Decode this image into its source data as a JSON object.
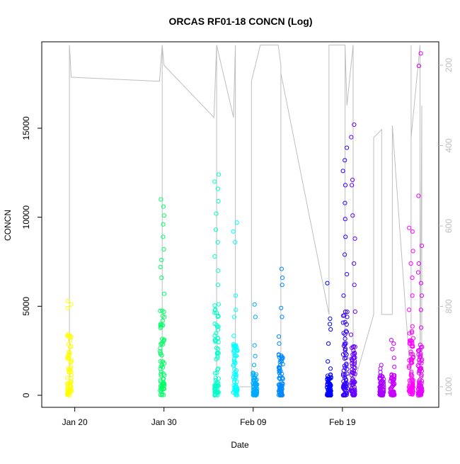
{
  "chart_data": {
    "type": "scatter",
    "title": "ORCAS RF01-18 CONCN (Log)",
    "xlabel": "Date",
    "ylabel": "CONCN",
    "x_ticks": [
      "Jan 20",
      "Jan 30",
      "Feb 09",
      "Feb 19"
    ],
    "y_ticks": [
      0,
      5000,
      10000,
      15000
    ],
    "y2_ticks": [
      200,
      400,
      600,
      800,
      1000
    ],
    "ylim": [
      0,
      19500
    ],
    "y2lim": [
      1000,
      150
    ],
    "grid": false,
    "colors": {
      "axis": "#000000",
      "secondary_axis": "#bebebe",
      "pressure_line": "#bebebe"
    },
    "flights": [
      {
        "day": 1.4,
        "color": "#ffff00",
        "max": 5400,
        "dense_max": 3800,
        "outliers": [
          4900,
          5100,
          5300
        ]
      },
      {
        "day": 11.8,
        "color": "#00ff66",
        "max": 11000,
        "dense_max": 4800,
        "outliers": [
          5700,
          6600,
          7200,
          7600,
          8200,
          8900,
          9600,
          10100,
          10600,
          11000
        ]
      },
      {
        "day": 17.9,
        "color": "#00ffc8",
        "max": 12400,
        "dense_max": 5500,
        "outliers": [
          6200,
          7000,
          7800,
          8600,
          9300,
          10200,
          10900,
          11600,
          12000,
          12400
        ]
      },
      {
        "day": 20.0,
        "color": "#00ffff",
        "max": 9700,
        "dense_max": 3500,
        "outliers": [
          4400,
          4800,
          5600,
          8600,
          9200,
          9700
        ]
      },
      {
        "day": 22.2,
        "color": "#00aaff",
        "max": 5100,
        "dense_max": 1300,
        "outliers": [
          1700,
          2200,
          2800,
          4400,
          5100
        ]
      },
      {
        "day": 25.1,
        "color": "#0088ff",
        "max": 7100,
        "dense_max": 2400,
        "outliers": [
          2900,
          3300,
          4400,
          4900,
          6200,
          6600,
          7100
        ]
      },
      {
        "day": 30.5,
        "color": "#0000ff",
        "max": 6300,
        "dense_max": 1200,
        "outliers": [
          1500,
          1900,
          2900,
          3700,
          4000,
          4300,
          6300
        ]
      },
      {
        "day": 32.3,
        "color": "#3300ff",
        "max": 13900,
        "dense_max": 4800,
        "outliers": [
          5600,
          6800,
          7900,
          8900,
          9900,
          10800,
          11800,
          12600,
          13200,
          13900
        ]
      },
      {
        "day": 33.2,
        "color": "#6600ff",
        "max": 15200,
        "dense_max": 2800,
        "outliers": [
          3400,
          4700,
          6200,
          7400,
          8800,
          10100,
          11800,
          12100,
          14500,
          15200
        ]
      },
      {
        "day": 36.4,
        "color": "#aa00ff",
        "max": 1700,
        "dense_max": 1100,
        "outliers": [
          1300,
          1500,
          1700
        ]
      },
      {
        "day": 37.6,
        "color": "#c800ff",
        "max": 3100,
        "dense_max": 1200,
        "outliers": [
          1600,
          2100,
          2600,
          2900,
          3100
        ]
      },
      {
        "day": 39.7,
        "color": "#ff00ff",
        "max": 9400,
        "dense_max": 4000,
        "outliers": [
          4800,
          5600,
          6600,
          7400,
          8100,
          9200,
          9400
        ]
      },
      {
        "day": 40.7,
        "color": "#e600ff",
        "max": 19200,
        "dense_max": 3000,
        "outliers": [
          3800,
          4800,
          5600,
          6300,
          6900,
          7400,
          8400,
          11200,
          18500,
          19200
        ]
      }
    ],
    "pressure_path": [
      [
        1.4,
        1000
      ],
      [
        1.4,
        150
      ],
      [
        1.4,
        670
      ],
      [
        1.4,
        150
      ],
      [
        1.6,
        230
      ],
      [
        11.5,
        240
      ],
      [
        11.8,
        150
      ],
      [
        11.8,
        1000
      ],
      [
        11.8,
        150
      ],
      [
        12.0,
        200
      ],
      [
        17.6,
        330
      ],
      [
        17.9,
        150
      ],
      [
        17.9,
        1000
      ],
      [
        17.9,
        150
      ],
      [
        19.8,
        330
      ],
      [
        20.0,
        150
      ],
      [
        20.0,
        1000
      ],
      [
        21.8,
        1000
      ],
      [
        21.8,
        240
      ],
      [
        22.8,
        150
      ],
      [
        24.8,
        150
      ],
      [
        25.1,
        200
      ],
      [
        25.1,
        1000
      ],
      [
        25.1,
        220
      ],
      [
        30.5,
        820
      ],
      [
        30.5,
        150
      ],
      [
        32.3,
        150
      ],
      [
        32.3,
        1000
      ],
      [
        32.3,
        150
      ],
      [
        32.5,
        300
      ],
      [
        33.2,
        150
      ],
      [
        33.2,
        1000
      ],
      [
        35.5,
        820
      ],
      [
        35.5,
        380
      ],
      [
        36.4,
        360
      ],
      [
        36.4,
        820
      ],
      [
        37.6,
        820
      ],
      [
        37.6,
        350
      ],
      [
        39.7,
        1000
      ],
      [
        39.7,
        150
      ],
      [
        39.7,
        380
      ],
      [
        40.7,
        150
      ],
      [
        40.7,
        1000
      ],
      [
        40.9,
        300
      ],
      [
        40.9,
        1000
      ]
    ]
  }
}
